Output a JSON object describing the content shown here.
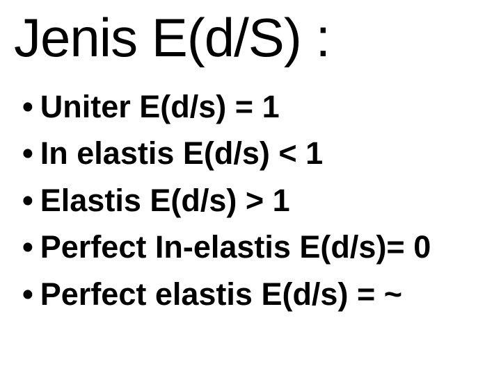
{
  "slide": {
    "title": "Jenis E(d/S) :",
    "title_fontsize": 78,
    "title_weight": "normal",
    "bullet_char": "•",
    "items": [
      {
        "text": "Uniter E(d/s) = 1"
      },
      {
        "text": "In elastis E(d/s) < 1"
      },
      {
        "text": "Elastis E(d/s) > 1"
      },
      {
        "text": "Perfect In-elastis E(d/s)= 0"
      },
      {
        "text": "Perfect elastis E(d/s) =  ~"
      }
    ],
    "item_fontsize": 45,
    "item_weight": "bold",
    "text_color": "#000000",
    "background_color": "#ffffff",
    "font_family": "Arial"
  }
}
